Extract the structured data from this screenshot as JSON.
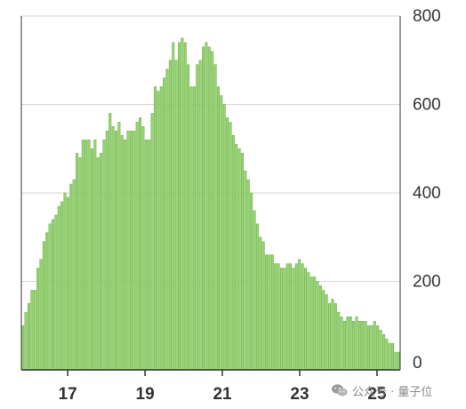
{
  "chart_data": {
    "type": "bar",
    "title": "",
    "xlabel": "",
    "ylabel": "",
    "ylim": [
      0,
      800
    ],
    "xlim": [
      15.8,
      25.6
    ],
    "x_ticks": [
      "17",
      "19",
      "21",
      "23",
      "25"
    ],
    "y_ticks": [
      "0",
      "200",
      "400",
      "600",
      "800"
    ],
    "y_axis_side": "right",
    "grid": "horizontal",
    "bar_color": "#9ad475",
    "bar_edge_color": "#6fb54c",
    "series": [
      {
        "values": [
          100,
          130,
          150,
          180,
          180,
          230,
          250,
          290,
          310,
          330,
          340,
          350,
          370,
          380,
          400,
          390,
          420,
          430,
          490,
          480,
          520,
          520,
          520,
          500,
          520,
          480,
          490,
          520,
          540,
          580,
          550,
          540,
          560,
          530,
          520,
          540,
          540,
          540,
          560,
          570,
          550,
          520,
          520,
          580,
          640,
          630,
          640,
          660,
          680,
          700,
          740,
          700,
          740,
          750,
          740,
          690,
          640,
          640,
          690,
          700,
          730,
          740,
          730,
          720,
          690,
          640,
          620,
          600,
          570,
          560,
          530,
          510,
          500,
          490,
          450,
          430,
          400,
          360,
          330,
          300,
          290,
          260,
          260,
          260,
          240,
          240,
          230,
          230,
          240,
          240,
          230,
          240,
          250,
          240,
          230,
          220,
          210,
          210,
          200,
          190,
          180,
          170,
          150,
          160,
          150,
          130,
          120,
          110,
          120,
          120,
          110,
          120,
          110,
          110,
          110,
          100,
          100,
          110,
          100,
          90,
          80,
          70,
          60,
          60,
          40,
          40
        ],
        "x_start": 15.8,
        "x_end": 25.6
      }
    ]
  },
  "watermark": {
    "text": "公众号 · 量子位",
    "icon": "wechat-icon"
  }
}
